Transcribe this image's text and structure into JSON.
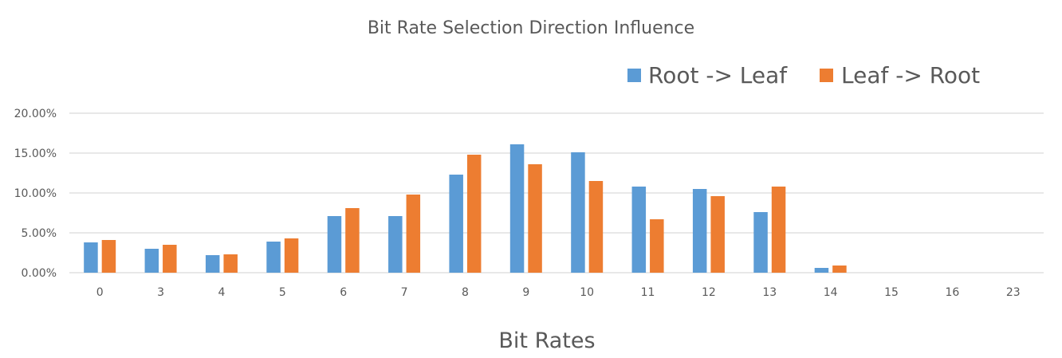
{
  "chart_data": {
    "type": "bar",
    "title": "Bit Rate Selection Direction Influence",
    "xlabel": "Bit Rates",
    "ylabel": "",
    "categories": [
      "0",
      "3",
      "4",
      "5",
      "6",
      "7",
      "8",
      "9",
      "10",
      "11",
      "12",
      "13",
      "14",
      "15",
      "16",
      "23"
    ],
    "series": [
      {
        "name": "Root -> Leaf",
        "color": "#5B9BD5",
        "values": [
          0.038,
          0.03,
          0.022,
          0.039,
          0.071,
          0.071,
          0.123,
          0.161,
          0.151,
          0.108,
          0.105,
          0.076,
          0.006,
          0,
          0,
          0
        ]
      },
      {
        "name": "Leaf -> Root",
        "color": "#ED7D31",
        "values": [
          0.041,
          0.035,
          0.023,
          0.043,
          0.081,
          0.098,
          0.148,
          0.136,
          0.115,
          0.067,
          0.096,
          0.108,
          0.009,
          0,
          0,
          0
        ]
      }
    ],
    "ylim": [
      0,
      0.2
    ],
    "y_ticks": [
      "0.00%",
      "5.00%",
      "10.00%",
      "15.00%",
      "20.00%"
    ],
    "y_tick_values": [
      0,
      0.05,
      0.1,
      0.15,
      0.2
    ],
    "grid": true,
    "legend_position": "top-right"
  }
}
